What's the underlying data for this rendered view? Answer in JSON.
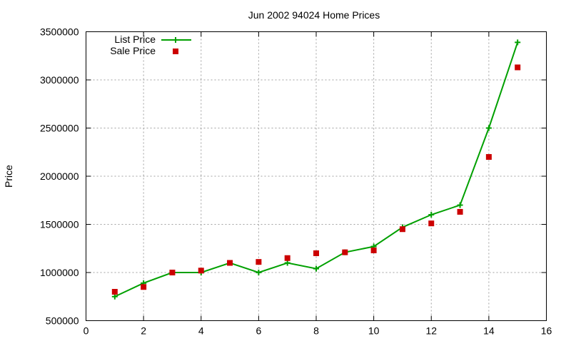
{
  "chart_data": {
    "type": "line",
    "title": "Jun 2002 94024 Home Prices",
    "xlabel": "",
    "ylabel": "Price",
    "xlim": [
      0,
      16
    ],
    "ylim": [
      500000,
      3500000
    ],
    "x_ticks": [
      "0",
      "2",
      "4",
      "6",
      "8",
      "10",
      "12",
      "14",
      "16"
    ],
    "y_ticks": [
      "500000",
      "1000000",
      "1500000",
      "2000000",
      "2500000",
      "3000000",
      "3500000"
    ],
    "grid": true,
    "legend_position": "top-left",
    "x": [
      1,
      2,
      3,
      4,
      5,
      6,
      7,
      8,
      9,
      10,
      11,
      12,
      13,
      14,
      15
    ],
    "series": [
      {
        "name": "List Price",
        "style": "line+cross",
        "color": "#00a000",
        "values": [
          750000,
          890000,
          1000000,
          1000000,
          1100000,
          1000000,
          1100000,
          1040000,
          1210000,
          1270000,
          1470000,
          1600000,
          1700000,
          2500000,
          3390000
        ]
      },
      {
        "name": "Sale Price",
        "style": "square",
        "color": "#cc0000",
        "values": [
          800000,
          850000,
          1000000,
          1020000,
          1100000,
          1110000,
          1150000,
          1200000,
          1210000,
          1230000,
          1450000,
          1510000,
          1630000,
          2200000,
          3130000
        ]
      }
    ]
  }
}
